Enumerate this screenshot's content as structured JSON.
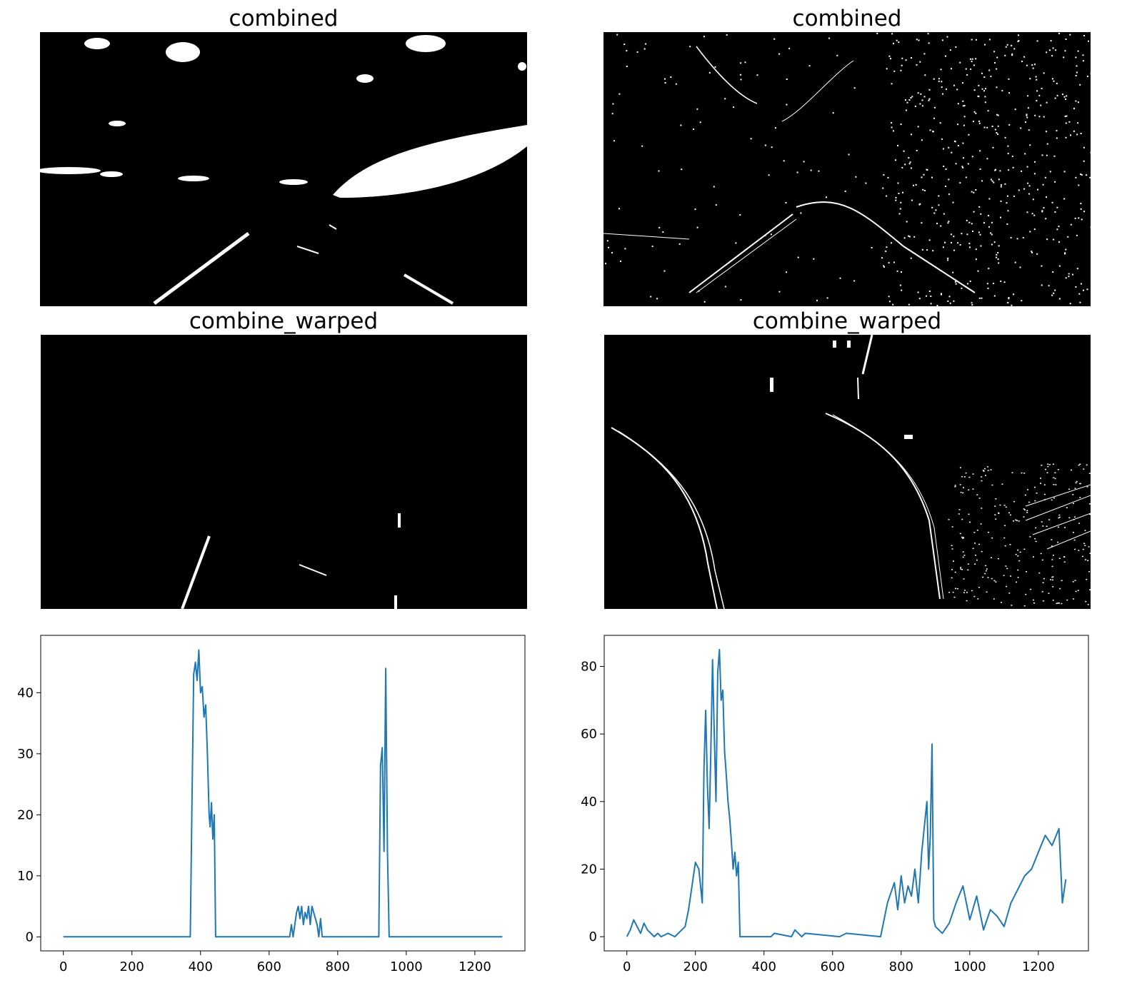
{
  "panels": {
    "top_left_title": "combined",
    "top_right_title": "combined",
    "mid_left_title": "combine_warped",
    "mid_right_title": "combine_warped"
  },
  "colors": {
    "line": "#1f77b4",
    "image_bg": "#000000",
    "image_fg": "#ffffff"
  },
  "chart_data": [
    {
      "type": "line",
      "title": "",
      "xlabel": "",
      "ylabel": "",
      "xlim": [
        -66,
        1346
      ],
      "ylim": [
        -2.3,
        49.4
      ],
      "xticks": [
        0,
        200,
        400,
        600,
        800,
        1000,
        1200
      ],
      "yticks": [
        0,
        10,
        20,
        30,
        40
      ],
      "grid": false,
      "series": [
        {
          "x": [
            0,
            370,
            375,
            380,
            385,
            390,
            395,
            400,
            405,
            410,
            415,
            420,
            425,
            428,
            432,
            436,
            440,
            444,
            446,
            450,
            660,
            665,
            670,
            675,
            680,
            685,
            690,
            695,
            700,
            705,
            710,
            715,
            720,
            725,
            730,
            735,
            740,
            745,
            750,
            755,
            920,
            925,
            930,
            935,
            940,
            945,
            950,
            955,
            1280
          ],
          "y": [
            0,
            0,
            22,
            43,
            45,
            42,
            47,
            40,
            41,
            36,
            38,
            30,
            20,
            18,
            22,
            16,
            20,
            0,
            0,
            0,
            0,
            2,
            0,
            2,
            4,
            5,
            3,
            5,
            2,
            4,
            3,
            5,
            2,
            5,
            4,
            3,
            2,
            0,
            3,
            0,
            0,
            28,
            31,
            14,
            44,
            14,
            0,
            0,
            0
          ]
        }
      ]
    },
    {
      "type": "line",
      "title": "",
      "xlabel": "",
      "ylabel": "",
      "xlim": [
        -66,
        1346
      ],
      "ylim": [
        -4.2,
        89.2
      ],
      "xticks": [
        0,
        200,
        400,
        600,
        800,
        1000,
        1200
      ],
      "yticks": [
        0,
        20,
        40,
        60,
        80
      ],
      "grid": false,
      "series": [
        {
          "x": [
            0,
            10,
            20,
            30,
            40,
            50,
            60,
            70,
            80,
            90,
            100,
            120,
            140,
            160,
            170,
            180,
            190,
            200,
            210,
            220,
            225,
            230,
            235,
            240,
            245,
            250,
            255,
            260,
            265,
            270,
            275,
            280,
            285,
            290,
            295,
            300,
            305,
            310,
            315,
            320,
            325,
            330,
            340,
            420,
            430,
            480,
            490,
            510,
            520,
            620,
            640,
            740,
            750,
            760,
            770,
            780,
            790,
            800,
            810,
            820,
            830,
            840,
            850,
            860,
            870,
            875,
            880,
            885,
            890,
            895,
            900,
            920,
            940,
            960,
            980,
            1000,
            1020,
            1040,
            1060,
            1080,
            1100,
            1120,
            1140,
            1160,
            1180,
            1200,
            1220,
            1240,
            1260,
            1270,
            1280
          ],
          "y": [
            0,
            2,
            5,
            3,
            1,
            4,
            2,
            1,
            0,
            1,
            0,
            1,
            0,
            2,
            3,
            8,
            15,
            22,
            20,
            10,
            50,
            67,
            45,
            32,
            55,
            82,
            60,
            40,
            78,
            85,
            70,
            73,
            55,
            48,
            40,
            35,
            28,
            20,
            25,
            18,
            22,
            0,
            0,
            0,
            1,
            0,
            2,
            0,
            1,
            0,
            1,
            0,
            5,
            10,
            13,
            16,
            8,
            18,
            10,
            15,
            12,
            20,
            10,
            25,
            35,
            40,
            20,
            30,
            57,
            5,
            3,
            1,
            4,
            10,
            15,
            5,
            12,
            2,
            8,
            6,
            3,
            10,
            14,
            18,
            20,
            25,
            30,
            27,
            32,
            10,
            17
          ]
        }
      ]
    }
  ]
}
